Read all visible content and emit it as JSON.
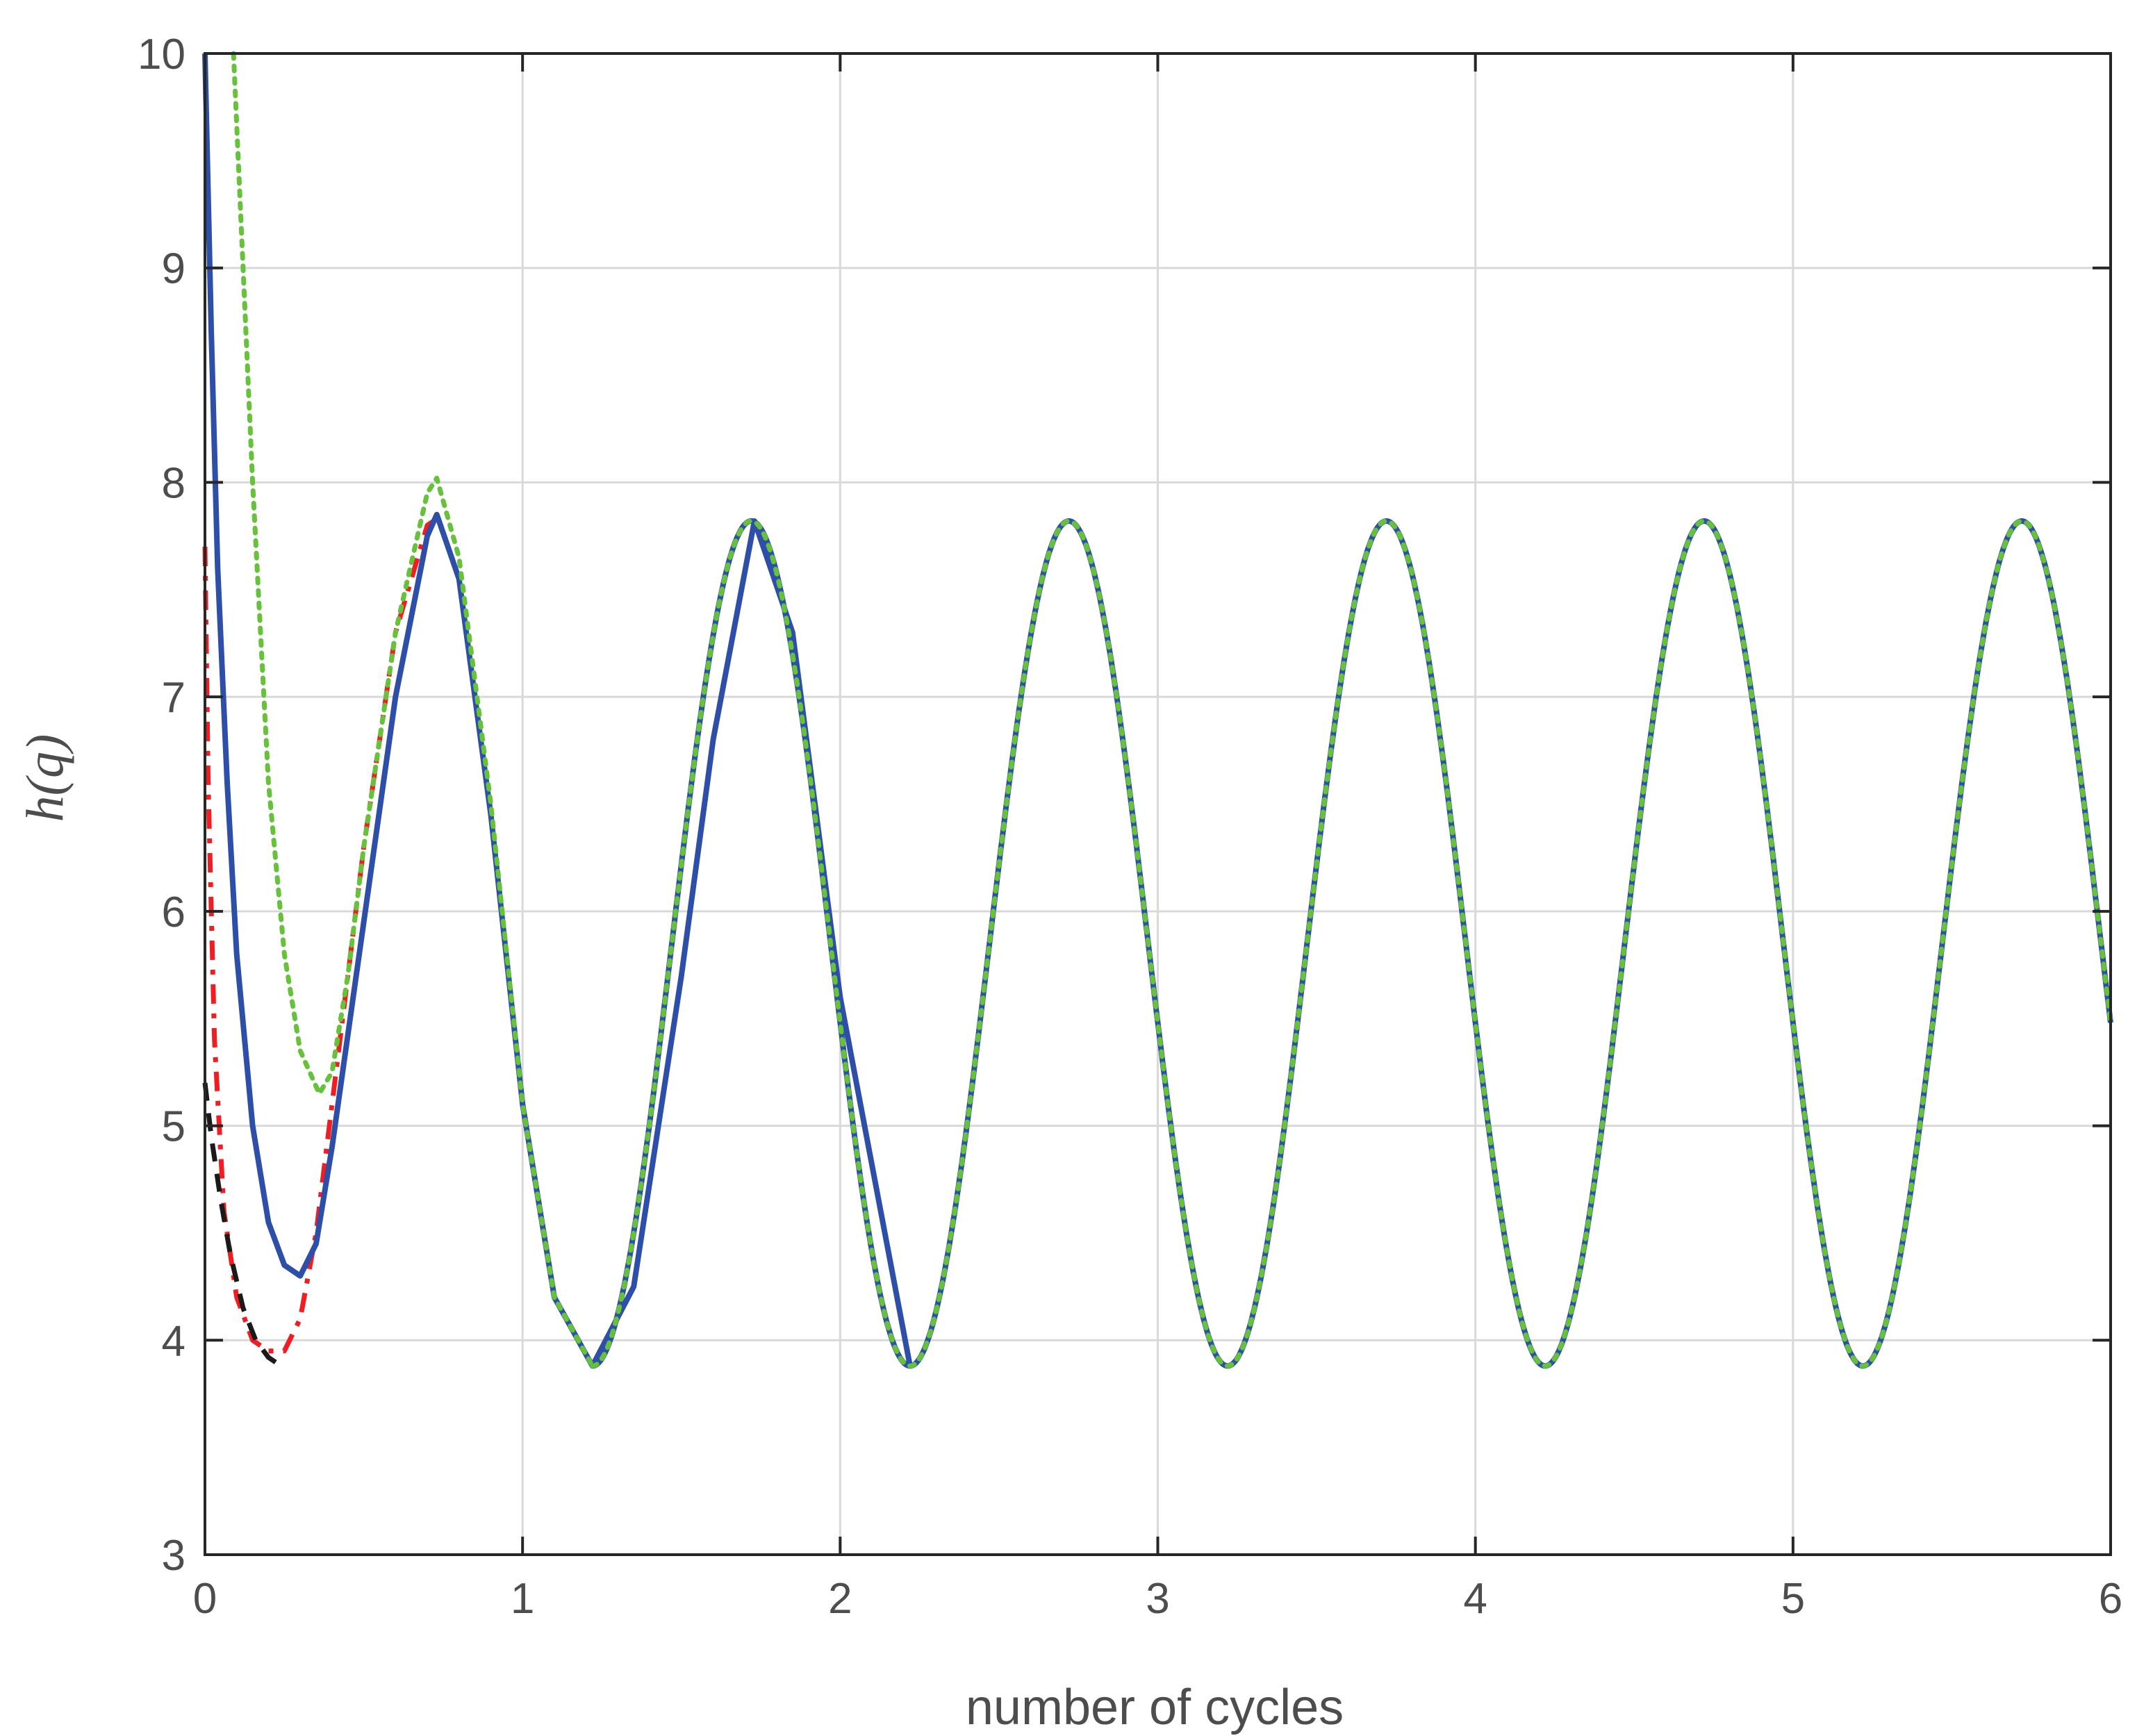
{
  "chart_data": {
    "type": "line",
    "xlabel": "number of cycles",
    "ylabel": "h(q)",
    "xlim": [
      0,
      6
    ],
    "ylim": [
      3,
      10
    ],
    "xticks": [
      0,
      1,
      2,
      3,
      4,
      5,
      6
    ],
    "yticks": [
      3,
      4,
      5,
      6,
      7,
      8,
      9,
      10
    ],
    "grid": true,
    "legend": "none",
    "series": [
      {
        "color": "#f01e23",
        "style": "dash-dot",
        "points": [
          [
            0.0,
            7.7
          ],
          [
            0.01,
            6.6
          ],
          [
            0.03,
            5.4
          ],
          [
            0.06,
            4.6
          ],
          [
            0.1,
            4.2
          ],
          [
            0.15,
            4.0
          ],
          [
            0.2,
            3.95
          ],
          [
            0.25,
            3.95
          ],
          [
            0.3,
            4.1
          ],
          [
            0.35,
            4.5
          ],
          [
            0.4,
            5.1
          ],
          [
            0.5,
            6.3
          ],
          [
            0.6,
            7.3
          ],
          [
            0.7,
            7.8
          ],
          [
            0.73,
            7.83
          ]
        ]
      },
      {
        "color": "#1a1a1a",
        "style": "dashed",
        "points": [
          [
            0.0,
            5.2
          ],
          [
            0.02,
            4.95
          ],
          [
            0.05,
            4.65
          ],
          [
            0.08,
            4.4
          ],
          [
            0.12,
            4.15
          ],
          [
            0.16,
            4.0
          ],
          [
            0.2,
            3.92
          ],
          [
            0.24,
            3.88
          ]
        ]
      },
      {
        "color": "#2e4fa8",
        "style": "solid",
        "points": [
          [
            0.0,
            10.0
          ],
          [
            0.02,
            8.7
          ],
          [
            0.04,
            7.6
          ],
          [
            0.07,
            6.6
          ],
          [
            0.1,
            5.8
          ],
          [
            0.15,
            5.0
          ],
          [
            0.2,
            4.55
          ],
          [
            0.25,
            4.35
          ],
          [
            0.3,
            4.3
          ],
          [
            0.35,
            4.45
          ],
          [
            0.4,
            4.9
          ],
          [
            0.5,
            5.95
          ],
          [
            0.6,
            7.0
          ],
          [
            0.7,
            7.75
          ],
          [
            0.73,
            7.85
          ],
          [
            0.8,
            7.55
          ],
          [
            0.9,
            6.45
          ],
          [
            1.0,
            5.1
          ],
          [
            1.1,
            4.2
          ],
          [
            1.22,
            3.88
          ],
          [
            1.35,
            4.25
          ],
          [
            1.5,
            5.7
          ],
          [
            1.6,
            6.8
          ],
          [
            1.73,
            7.82
          ],
          [
            1.85,
            7.3
          ],
          [
            2.0,
            5.6
          ],
          [
            2.22,
            3.88
          ]
        ]
      },
      {
        "color": "#66c23a",
        "style": "dotted",
        "points": [
          [
            0.09,
            10.0
          ],
          [
            0.12,
            9.0
          ],
          [
            0.15,
            8.0
          ],
          [
            0.2,
            6.6
          ],
          [
            0.25,
            5.8
          ],
          [
            0.3,
            5.35
          ],
          [
            0.36,
            5.15
          ],
          [
            0.4,
            5.25
          ],
          [
            0.45,
            5.7
          ],
          [
            0.5,
            6.3
          ],
          [
            0.6,
            7.3
          ],
          [
            0.7,
            7.95
          ],
          [
            0.73,
            8.02
          ],
          [
            0.8,
            7.65
          ],
          [
            0.9,
            6.5
          ],
          [
            1.0,
            5.1
          ],
          [
            1.1,
            4.2
          ],
          [
            1.22,
            3.88
          ]
        ]
      }
    ],
    "steady_state": {
      "period": 1,
      "peak": 7.82,
      "trough": 3.88,
      "first_peak_x": 0.73,
      "first_trough_x": 1.22,
      "x_range": [
        1.22,
        6.0
      ],
      "end_value": 5.2,
      "colors": [
        "#2e4fa8",
        "#66c23a"
      ]
    }
  }
}
